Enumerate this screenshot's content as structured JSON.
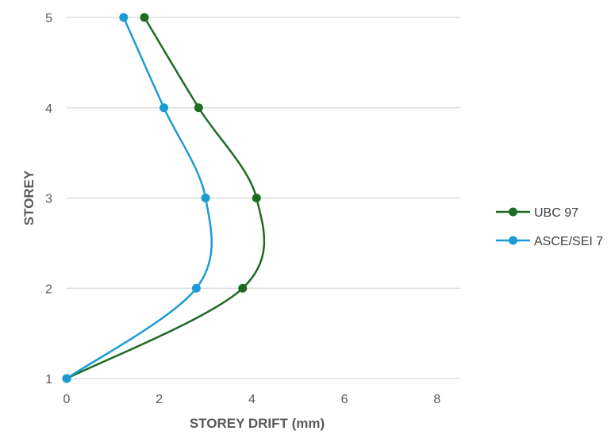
{
  "chart_data": {
    "type": "line",
    "title": "",
    "xlabel": "STOREY DRIFT (mm)",
    "ylabel": "STOREY",
    "xlim": [
      0,
      8.5
    ],
    "ylim": [
      1,
      5
    ],
    "xticks": [
      0,
      2,
      4,
      6,
      8
    ],
    "yticks": [
      1,
      2,
      3,
      4,
      5
    ],
    "grid": "horizontal",
    "legend_position": "right",
    "smooth": true,
    "series": [
      {
        "name": "UBC 97",
        "color": "#1e6b22",
        "x": [
          0,
          3.8,
          4.1,
          2.85,
          1.68
        ],
        "y": [
          1,
          2,
          3,
          4,
          5
        ]
      },
      {
        "name": "ASCE/SEI 7",
        "color": "#1b9bd3",
        "x": [
          0,
          2.8,
          3.0,
          2.1,
          1.23
        ],
        "y": [
          1,
          2,
          3,
          4,
          5
        ]
      }
    ]
  }
}
